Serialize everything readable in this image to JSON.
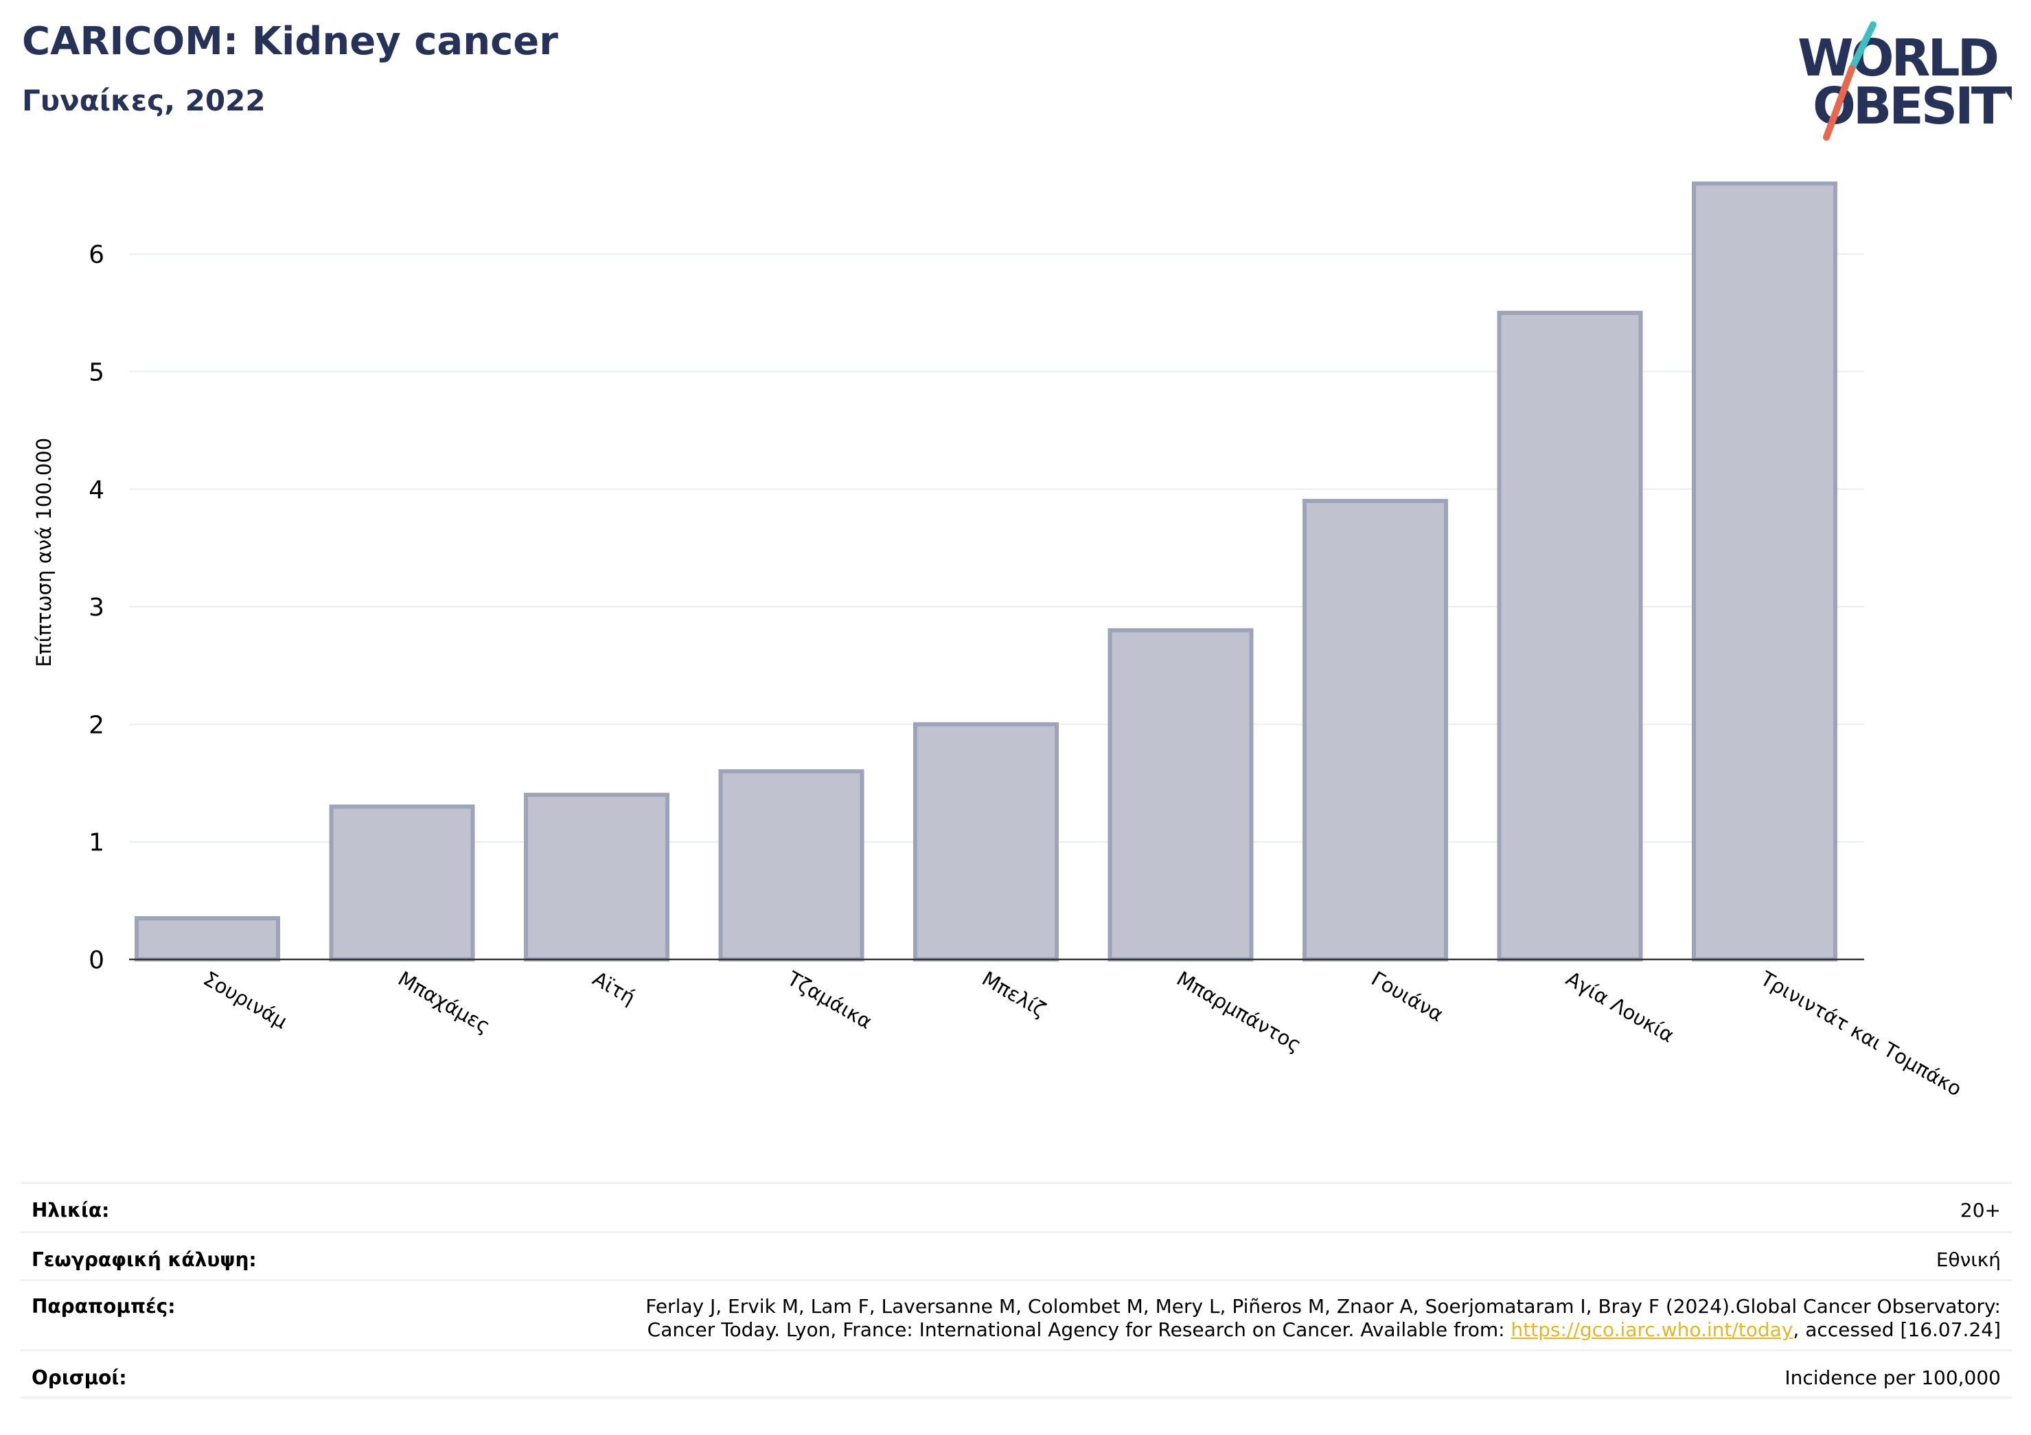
{
  "header": {
    "title": "CARICOM: Kidney cancer",
    "subtitle": "Γυναίκες, 2022"
  },
  "logo": {
    "line1": "WORLD",
    "line2": "OBESITY"
  },
  "colors": {
    "title": "#273259",
    "bar_fill": "#c0c3cf",
    "bar_stroke": "#9ea3b7",
    "grid": "#e9ecf0",
    "axis": "#333333",
    "link": "#e5b624",
    "logo_navy": "#273259",
    "logo_teal": "#3fbfbf",
    "logo_coral": "#e8674f"
  },
  "chart_data": {
    "type": "bar",
    "title": "CARICOM: Kidney cancer",
    "subtitle": "Γυναίκες, 2022",
    "xlabel": "",
    "ylabel": "Επίπτωση ανά 100.000",
    "ylim": [
      0,
      6.8
    ],
    "yticks": [
      0,
      1,
      2,
      3,
      4,
      5,
      6
    ],
    "grid": true,
    "categories": [
      "Σουρινάμ",
      "Μπαχάμες",
      "Αϊτή",
      "Τζαμάικα",
      "Μπελίζ",
      "Μπαρμπάντος",
      "Γουιάνα",
      "Αγία Λουκία",
      "Τρινιντάτ και Τομπάκο"
    ],
    "values": [
      0.35,
      1.3,
      1.4,
      1.6,
      2.0,
      2.8,
      3.9,
      5.5,
      6.6
    ]
  },
  "meta": {
    "age": {
      "label": "Ηλικία:",
      "value": "20+"
    },
    "coverage": {
      "label": "Γεωγραφική κάλυψη:",
      "value": "Εθνική"
    },
    "references": {
      "label": "Παραπομπές:",
      "line1": "Ferlay J, Ervik M, Lam F, Laversanne M, Colombet M, Mery L, Piñeros M, Znaor A, Soerjomataram I, Bray F (2024).Global Cancer Observatory:",
      "line2_prefix": "Cancer Today. Lyon, France: International Agency for Research on Cancer. Available from: ",
      "link": "https://gco.iarc.who.int/today",
      "line2_suffix": ", accessed [16.07.24]"
    },
    "definitions": {
      "label": "Ορισμοί:",
      "value": "Incidence per 100,000"
    }
  }
}
